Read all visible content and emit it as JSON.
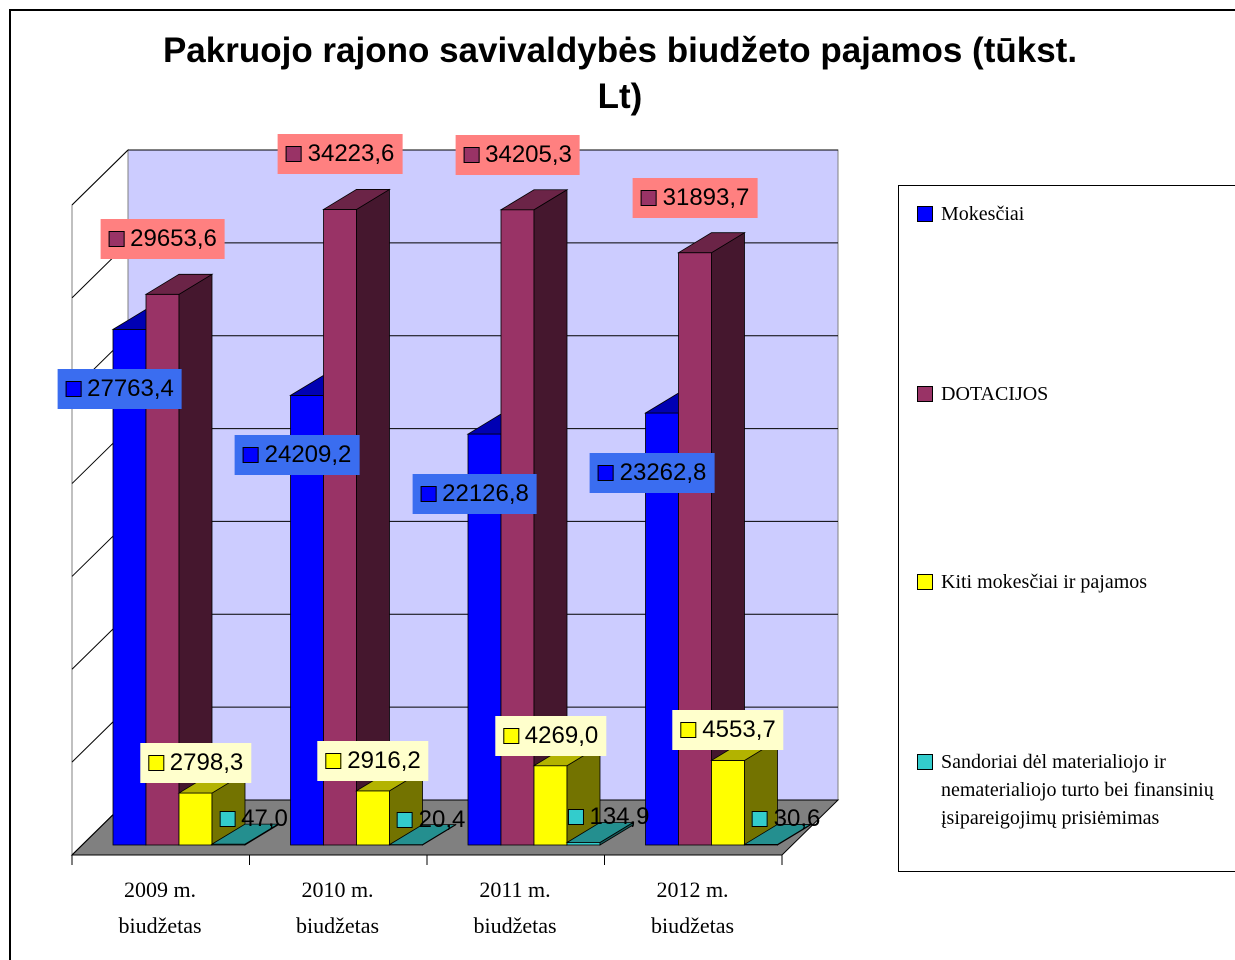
{
  "chart_data": {
    "type": "bar3d",
    "title": "Pakruojo rajono savivaldybės biudžeto pajamos (tūkst. Lt)",
    "categories": [
      "2009 m. biudžetas",
      "2010 m. biudžetas",
      "2011 m. biudžetas",
      "2012 m. biudžetas"
    ],
    "series": [
      {
        "name": "Mokesčiai",
        "color": "#0000ff",
        "values": [
          27763.4,
          24209.2,
          22126.8,
          23262.8
        ],
        "value_labels": [
          "27763,4",
          "24209,2",
          "22126,8",
          "23262,8"
        ]
      },
      {
        "name": "DOTACIJOS",
        "color": "#993366",
        "values": [
          29653.6,
          34223.6,
          34205.3,
          31893.7
        ],
        "value_labels": [
          "29653,6",
          "34223,6",
          "34205,3",
          "31893,7"
        ]
      },
      {
        "name": "Kiti mokesčiai ir pajamos",
        "color": "#ffff00",
        "values": [
          2798.3,
          2916.2,
          4269.0,
          4553.7
        ],
        "value_labels": [
          "2798,3",
          "2916,2",
          "4269,0",
          "4553,7"
        ]
      },
      {
        "name": "Sandoriai dėl materialiojo ir nematerialiojo turto bei finansinių įsipareigojimų prisiėmimas",
        "color": "#33cccc",
        "values": [
          47.0,
          20.4,
          134.9,
          30.6
        ],
        "value_labels": [
          "47,0",
          "20,4",
          "134,9",
          "30,6"
        ]
      }
    ],
    "ylim": [
      0,
      35000
    ],
    "yticks": [
      0,
      5000,
      10000,
      15000,
      20000,
      25000,
      30000,
      35000
    ],
    "grid": true,
    "legend": "right"
  }
}
